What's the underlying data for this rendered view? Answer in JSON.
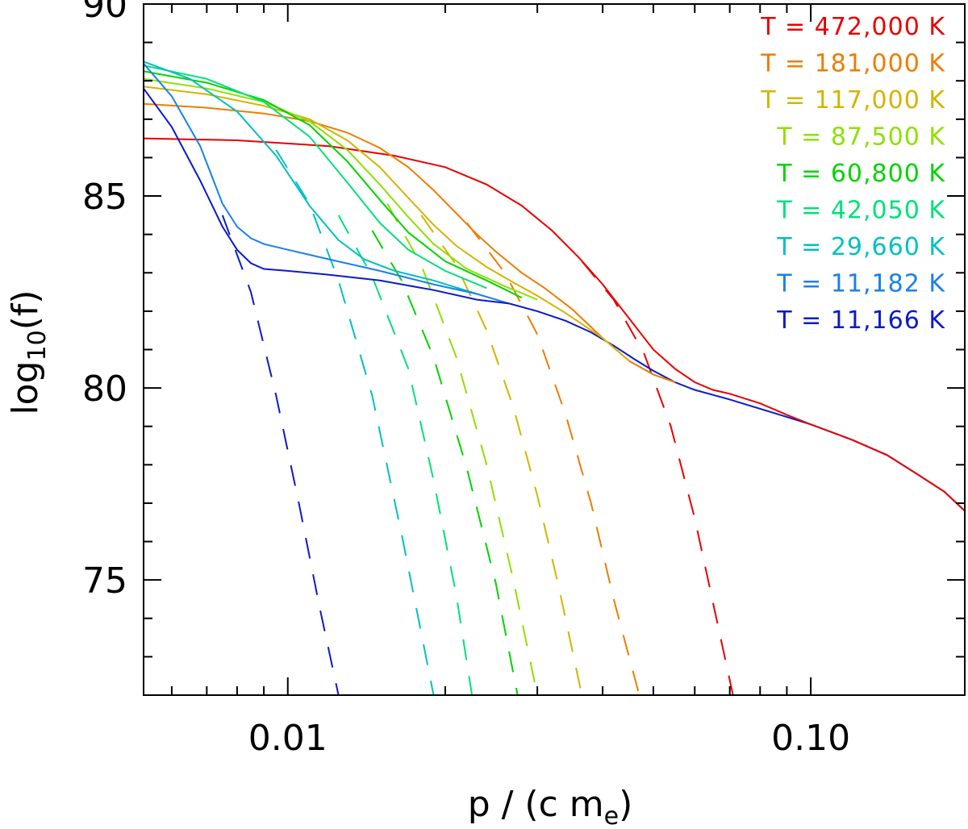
{
  "chart_data": {
    "type": "line",
    "title": "",
    "xlabel": {
      "main": "p / (c m",
      "sub": "e",
      "close": ")"
    },
    "ylabel": {
      "main": "log",
      "sub": "10",
      "close": "(f)"
    },
    "xscale": "log",
    "xlim": [
      0.0053,
      0.197
    ],
    "ylim": [
      72.0,
      90.0
    ],
    "x_major_ticks": [
      0.01,
      0.1
    ],
    "x_tick_labels": [
      "0.01",
      "0.10"
    ],
    "x_minor_ticks": [
      0.006,
      0.007,
      0.008,
      0.009,
      0.02,
      0.03,
      0.04,
      0.05,
      0.06,
      0.07,
      0.08,
      0.09
    ],
    "y_major_ticks": [
      75,
      80,
      85,
      90
    ],
    "y_tick_labels": [
      "75",
      "80",
      "85",
      "90"
    ],
    "y_minor_ticks": [
      73,
      74,
      76,
      77,
      78,
      79,
      81,
      82,
      83,
      84,
      86,
      87,
      88,
      89
    ],
    "legend_position": "top-right",
    "common_tail": {
      "x": [
        0.0265,
        0.03,
        0.034,
        0.038,
        0.042,
        0.046,
        0.05,
        0.055,
        0.06,
        0.07,
        0.085,
        0.1,
        0.12,
        0.14,
        0.16,
        0.18,
        0.197
      ],
      "y": [
        82.2,
        82.0,
        81.75,
        81.45,
        81.1,
        80.75,
        80.45,
        80.15,
        79.95,
        79.7,
        79.35,
        79.05,
        78.65,
        78.25,
        77.75,
        77.3,
        76.8
      ]
    },
    "series": [
      {
        "name": "T = 472,000 K",
        "legend": "T = 472,000 K",
        "color": "#e80000",
        "solid": {
          "x": [
            0.0053,
            0.008,
            0.012,
            0.016,
            0.02,
            0.024,
            0.028,
            0.032,
            0.036,
            0.04,
            0.045,
            0.05,
            0.055,
            0.06,
            0.065,
            0.07,
            0.08,
            0.09,
            0.1,
            0.12,
            0.14,
            0.16,
            0.18,
            0.197
          ],
          "y": [
            86.5,
            86.45,
            86.3,
            86.05,
            85.75,
            85.3,
            84.75,
            84.1,
            83.4,
            82.7,
            81.8,
            81.0,
            80.5,
            80.15,
            79.95,
            79.85,
            79.6,
            79.3,
            79.05,
            78.65,
            78.25,
            77.75,
            77.3,
            76.8
          ]
        },
        "dashed": {
          "x": [
            0.0365,
            0.042,
            0.048,
            0.054,
            0.06,
            0.066,
            0.071
          ],
          "y": [
            83.3,
            82.3,
            80.9,
            79.0,
            76.6,
            74.0,
            72.0
          ]
        }
      },
      {
        "name": "T = 181,000 K",
        "legend": "T = 181,000 K",
        "color": "#ed7d00",
        "solid": {
          "x": [
            0.0053,
            0.007,
            0.009,
            0.011,
            0.013,
            0.015,
            0.017,
            0.019,
            0.021,
            0.023,
            0.025,
            0.028,
            0.031,
            0.035,
            0.04,
            0.045,
            0.05,
            0.055
          ],
          "y": [
            87.4,
            87.3,
            87.15,
            86.95,
            86.65,
            86.25,
            85.75,
            85.15,
            84.55,
            84.0,
            83.55,
            83.0,
            82.6,
            82.05,
            81.3,
            80.7,
            80.35,
            80.15
          ]
        },
        "dashed": {
          "x": [
            0.022,
            0.026,
            0.03,
            0.034,
            0.038,
            0.042,
            0.047
          ],
          "y": [
            84.3,
            83.0,
            81.4,
            79.3,
            77.0,
            74.5,
            72.0
          ]
        }
      },
      {
        "name": "T = 117,000 K",
        "legend": "T = 117,000 K",
        "color": "#d4b400",
        "solid": {
          "x": [
            0.0053,
            0.007,
            0.009,
            0.011,
            0.013,
            0.015,
            0.017,
            0.019,
            0.021,
            0.024,
            0.027,
            0.03,
            0.034,
            0.04,
            0.045
          ],
          "y": [
            87.85,
            87.65,
            87.35,
            87.0,
            86.45,
            85.75,
            84.95,
            84.25,
            83.7,
            83.15,
            82.75,
            82.4,
            81.95,
            81.3,
            80.7
          ]
        },
        "dashed": {
          "x": [
            0.018,
            0.021,
            0.024,
            0.027,
            0.03,
            0.033,
            0.0365
          ],
          "y": [
            84.5,
            83.2,
            81.5,
            79.5,
            77.2,
            74.8,
            72.0
          ]
        }
      },
      {
        "name": "T = 87,500 K",
        "legend": "T = 87,500 K",
        "color": "#8fe000",
        "solid": {
          "x": [
            0.0053,
            0.007,
            0.009,
            0.011,
            0.013,
            0.015,
            0.017,
            0.019,
            0.022,
            0.026,
            0.03
          ],
          "y": [
            88.05,
            87.8,
            87.45,
            86.95,
            86.2,
            85.3,
            84.45,
            83.75,
            83.1,
            82.65,
            82.3
          ]
        },
        "dashed": {
          "x": [
            0.0155,
            0.018,
            0.021,
            0.024,
            0.027,
            0.03
          ],
          "y": [
            84.8,
            83.2,
            80.8,
            78.0,
            75.0,
            72.0
          ]
        }
      },
      {
        "name": "T = 60,800 K",
        "legend": "T = 60,800 K",
        "color": "#00d400",
        "solid": {
          "x": [
            0.0053,
            0.007,
            0.009,
            0.011,
            0.013,
            0.015,
            0.017,
            0.02,
            0.024,
            0.028
          ],
          "y": [
            88.25,
            87.95,
            87.5,
            86.85,
            85.9,
            84.9,
            84.05,
            83.3,
            82.8,
            82.35
          ]
        },
        "dashed": {
          "x": [
            0.0145,
            0.0165,
            0.019,
            0.022,
            0.025,
            0.0275
          ],
          "y": [
            84.1,
            82.8,
            80.8,
            77.9,
            74.9,
            72.0
          ]
        }
      },
      {
        "name": "T = 42,050 K",
        "legend": "T = 42,050 K",
        "color": "#00e07a",
        "solid": {
          "x": [
            0.0053,
            0.007,
            0.009,
            0.011,
            0.013,
            0.015,
            0.017,
            0.02,
            0.024
          ],
          "y": [
            88.4,
            88.05,
            87.45,
            86.55,
            85.35,
            84.3,
            83.6,
            83.05,
            82.6
          ]
        },
        "dashed": {
          "x": [
            0.0125,
            0.0145,
            0.017,
            0.019,
            0.021,
            0.0225
          ],
          "y": [
            84.5,
            82.9,
            80.5,
            77.6,
            74.6,
            72.0
          ]
        }
      },
      {
        "name": "T = 29,660 K",
        "legend": "T = 29,660 K",
        "color": "#00c0c0",
        "solid": {
          "x": [
            0.0053,
            0.0065,
            0.008,
            0.0095,
            0.011,
            0.0125,
            0.014,
            0.016,
            0.019,
            0.023
          ],
          "y": [
            88.5,
            88.05,
            87.2,
            86.05,
            84.75,
            83.85,
            83.35,
            83.05,
            82.8,
            82.45
          ]
        },
        "dashed": {
          "x": [
            0.0095,
            0.011,
            0.0125,
            0.0145,
            0.0165,
            0.019
          ],
          "y": [
            86.2,
            84.8,
            82.8,
            79.8,
            76.2,
            72.0
          ]
        }
      },
      {
        "name": "T = 11,182 K",
        "legend": "T = 11,182 K",
        "color": "#1a80e8",
        "solid": {
          "x": [
            0.0053,
            0.006,
            0.0068,
            0.0075,
            0.008,
            0.0085,
            0.009,
            0.01,
            0.012,
            0.015,
            0.019,
            0.023,
            0.0265
          ],
          "y": [
            88.45,
            87.6,
            86.3,
            84.8,
            84.2,
            83.9,
            83.75,
            83.6,
            83.35,
            83.05,
            82.7,
            82.45,
            82.2
          ]
        }
      },
      {
        "name": "T = 11,166 K",
        "legend": "T = 11,166 K",
        "color": "#0a1acc",
        "solid": {
          "x": [
            0.0053,
            0.006,
            0.0068,
            0.0075,
            0.008,
            0.0085,
            0.009,
            0.01,
            0.012,
            0.015,
            0.019,
            0.023,
            0.0265
          ],
          "y": [
            87.8,
            86.8,
            85.4,
            84.2,
            83.6,
            83.25,
            83.1,
            83.05,
            82.95,
            82.8,
            82.55,
            82.3,
            82.2
          ]
        },
        "dashed": {
          "x": [
            0.0075,
            0.0085,
            0.0095,
            0.0105,
            0.0115,
            0.0125
          ],
          "y": [
            84.5,
            82.5,
            79.8,
            77.0,
            74.3,
            72.0
          ]
        }
      }
    ]
  }
}
